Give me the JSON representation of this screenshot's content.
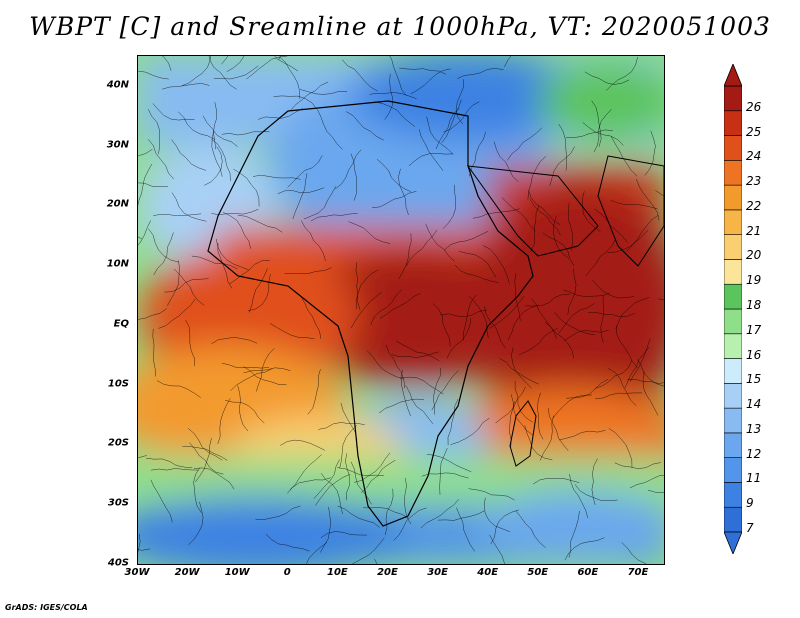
{
  "title": "WBPT [C] and Sreamline at 1000hPa, VT: 2020051003",
  "credit": "GrADS: IGES/COLA",
  "map": {
    "lat_labels": [
      "40N",
      "30N",
      "20N",
      "10N",
      "EQ",
      "10S",
      "20S",
      "30S",
      "40S"
    ],
    "lon_labels": [
      "30W",
      "20W",
      "10W",
      "0",
      "10E",
      "20E",
      "30E",
      "40E",
      "50E",
      "60E",
      "70E"
    ],
    "lat_range": [
      -40,
      45
    ],
    "lon_range": [
      -30,
      75
    ]
  },
  "colorbar": {
    "labels": [
      "7",
      "9",
      "11",
      "12",
      "13",
      "14",
      "15",
      "16",
      "17",
      "18",
      "19",
      "20",
      "21",
      "22",
      "23",
      "24",
      "25",
      "26"
    ],
    "colors": [
      "#2e6fd8",
      "#3d82e3",
      "#5395ea",
      "#6aa7ee",
      "#88bbf2",
      "#a8d0f6",
      "#ccebfb",
      "#b8f0b0",
      "#8fdf8a",
      "#5cc45c",
      "#fbe59a",
      "#f9cf72",
      "#f7b548",
      "#f39a2d",
      "#ee7424",
      "#e0501a",
      "#c83016",
      "#a41a14"
    ]
  },
  "colors": {
    "land_outline": "#000000",
    "streamline": "#000000"
  }
}
